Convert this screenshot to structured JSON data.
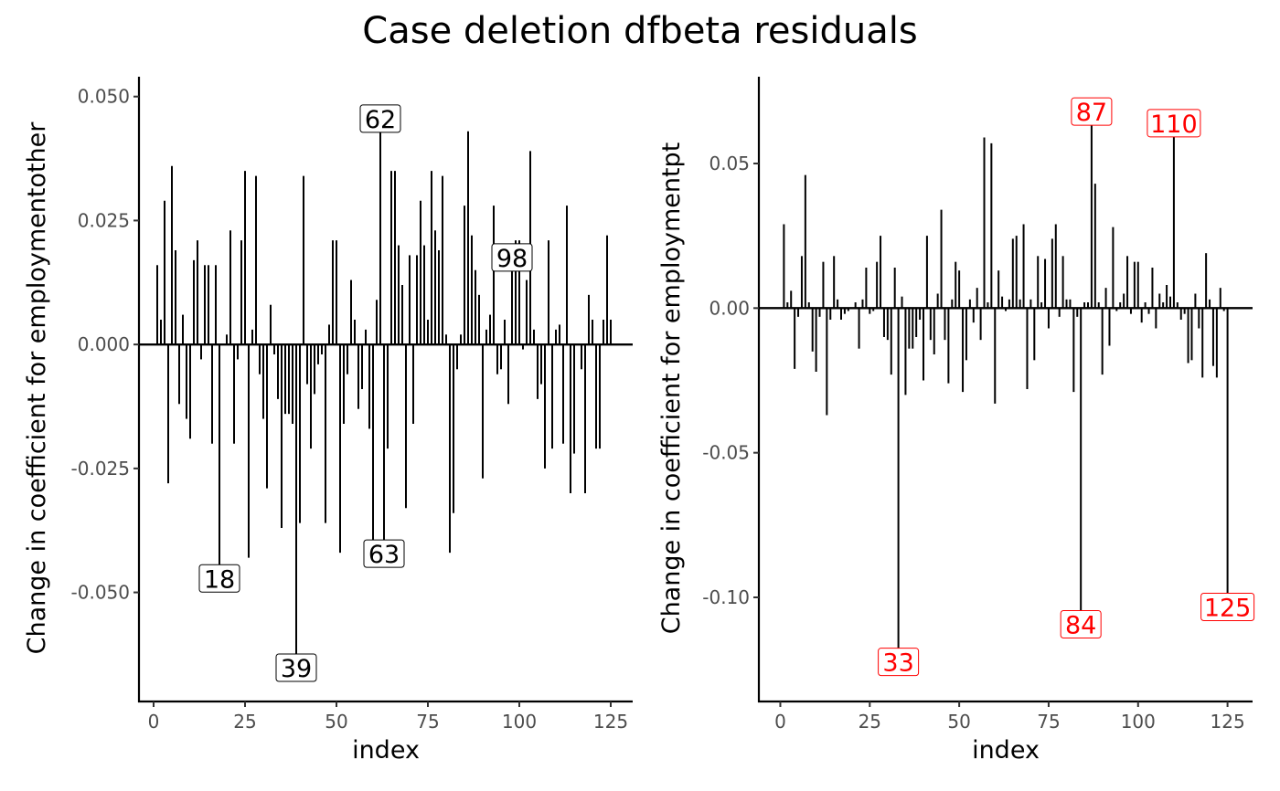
{
  "title": "Case deletion dfbeta residuals",
  "chart_data": [
    {
      "type": "bar",
      "subtype": "spike",
      "xlabel": "index",
      "ylabel": "Change in coefficient for employmentother",
      "xlim": [
        -4,
        131
      ],
      "ylim": [
        -0.072,
        0.054
      ],
      "xticks": [
        0,
        25,
        50,
        75,
        100,
        125
      ],
      "yticks": [
        -0.05,
        -0.025,
        0,
        0.025,
        0.05
      ],
      "ytick_labels": [
        "-0.050",
        "-0.025",
        "0.000",
        "0.025",
        "0.050"
      ],
      "grid": false,
      "label_color": "#000000",
      "x_start": 1,
      "values": [
        0.016,
        0.005,
        0.029,
        -0.028,
        0.036,
        0.019,
        -0.012,
        0.006,
        -0.015,
        -0.019,
        0.017,
        0.021,
        -0.003,
        0.016,
        0.016,
        -0.02,
        0.016,
        -0.047,
        0.0,
        0.002,
        0.023,
        -0.02,
        -0.003,
        0.021,
        0.035,
        -0.043,
        0.003,
        0.034,
        -0.006,
        -0.015,
        -0.029,
        0.008,
        -0.002,
        -0.011,
        -0.037,
        -0.014,
        -0.014,
        -0.016,
        -0.065,
        -0.036,
        0.034,
        -0.008,
        -0.021,
        -0.01,
        -0.004,
        -0.002,
        -0.036,
        0.004,
        0.021,
        0.021,
        -0.042,
        -0.016,
        -0.006,
        0.013,
        0.005,
        -0.013,
        -0.009,
        0.003,
        -0.017,
        -0.042,
        0.009,
        0.045,
        -0.042,
        -0.021,
        0.035,
        0.035,
        0.02,
        0.012,
        -0.033,
        0.018,
        -0.016,
        0.018,
        0.029,
        0.02,
        0.005,
        0.035,
        0.023,
        0.019,
        0.034,
        0.002,
        -0.042,
        -0.034,
        -0.005,
        0.002,
        0.028,
        0.043,
        0.022,
        0.015,
        0.01,
        -0.027,
        0.003,
        0.006,
        0.028,
        -0.006,
        -0.005,
        0.005,
        -0.012,
        0.017,
        0.021,
        0.021,
        -0.001,
        0.013,
        0.039,
        0.003,
        -0.011,
        -0.008,
        -0.025,
        0.021,
        -0.021,
        0.003,
        0.004,
        -0.02,
        0.028,
        -0.03,
        -0.022,
        0.0,
        -0.005,
        -0.03,
        0.01,
        0.005,
        -0.021,
        -0.021,
        0.005,
        0.022,
        0.005
      ],
      "annotations": [
        {
          "label": "62",
          "index": 62
        },
        {
          "label": "18",
          "index": 18
        },
        {
          "label": "39",
          "index": 39
        },
        {
          "label": "63",
          "index": 63
        },
        {
          "label": "98",
          "index": 98
        }
      ]
    },
    {
      "type": "bar",
      "subtype": "spike",
      "xlabel": "index",
      "ylabel": "Change in coefficient for employmentpt",
      "xlim": [
        -6,
        132
      ],
      "ylim": [
        -0.136,
        0.08
      ],
      "xticks": [
        0,
        25,
        50,
        75,
        100,
        125
      ],
      "yticks": [
        -0.1,
        -0.05,
        0,
        0.05
      ],
      "ytick_labels": [
        "-0.10",
        "-0.05",
        "0.00",
        "0.05"
      ],
      "grid": false,
      "label_color": "#ff0000",
      "x_start": 1,
      "values": [
        0.029,
        0.002,
        0.006,
        -0.021,
        -0.003,
        0.018,
        0.046,
        0.002,
        -0.015,
        -0.022,
        -0.003,
        0.016,
        -0.037,
        -0.004,
        0.018,
        0.003,
        -0.004,
        -0.002,
        -0.001,
        0.0,
        0.002,
        -0.014,
        0.003,
        0.014,
        -0.002,
        -0.001,
        0.016,
        0.025,
        -0.01,
        -0.011,
        -0.023,
        0.014,
        -0.122,
        0.004,
        -0.03,
        -0.014,
        -0.014,
        -0.01,
        -0.004,
        -0.025,
        0.025,
        -0.011,
        -0.016,
        0.005,
        0.034,
        -0.011,
        -0.026,
        0.003,
        0.016,
        0.013,
        -0.029,
        -0.018,
        0.003,
        -0.005,
        0.007,
        -0.011,
        0.059,
        0.002,
        0.057,
        -0.033,
        0.013,
        0.004,
        -0.001,
        0.003,
        0.024,
        0.025,
        0.003,
        0.029,
        -0.028,
        0.003,
        -0.018,
        0.018,
        0.002,
        0.017,
        -0.007,
        0.024,
        0.029,
        -0.003,
        0.018,
        0.003,
        0.003,
        -0.029,
        -0.003,
        -0.109,
        0.002,
        0.002,
        0.067,
        0.043,
        0.002,
        -0.023,
        0.007,
        -0.013,
        0.028,
        -0.001,
        0.002,
        0.005,
        0.018,
        -0.002,
        0.016,
        0.016,
        -0.005,
        0.002,
        -0.002,
        0.014,
        -0.007,
        0.005,
        0.002,
        0.008,
        0.004,
        0.063,
        0.002,
        -0.004,
        -0.002,
        -0.019,
        -0.018,
        0.005,
        -0.007,
        -0.024,
        0.019,
        0.003,
        -0.02,
        -0.024,
        0.007,
        -0.001,
        -0.103
      ],
      "annotations": [
        {
          "label": "87",
          "index": 87
        },
        {
          "label": "110",
          "index": 110
        },
        {
          "label": "33",
          "index": 33
        },
        {
          "label": "84",
          "index": 84
        },
        {
          "label": "125",
          "index": 125
        }
      ]
    }
  ]
}
